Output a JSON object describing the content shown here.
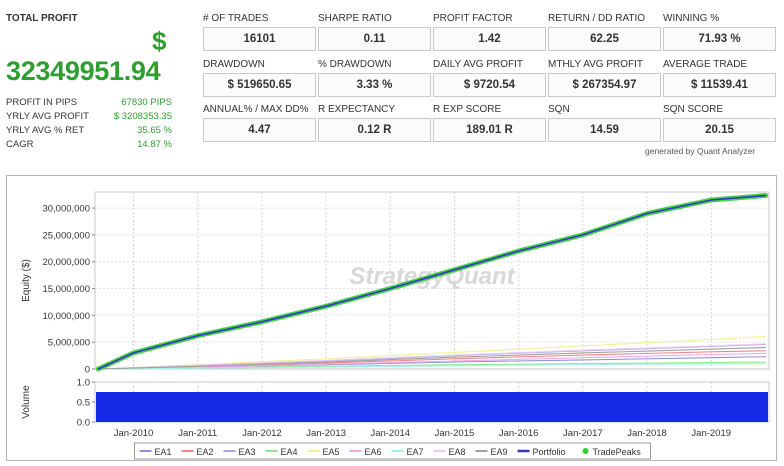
{
  "summary": {
    "total_profit_label": "TOTAL PROFIT",
    "currency_symbol": "$",
    "total_profit_value": "32349951.94",
    "rows": [
      {
        "label": "PROFIT IN PIPS",
        "value": "67830 PIPS"
      },
      {
        "label": "YRLY AVG PROFIT",
        "value": "$ 3208353.35"
      },
      {
        "label": "YRLY AVG % RET",
        "value": "35.65 %"
      },
      {
        "label": "CAGR",
        "value": "14.87 %"
      }
    ]
  },
  "metrics": [
    {
      "label": "# OF TRADES",
      "value": "16101"
    },
    {
      "label": "SHARPE RATIO",
      "value": "0.11"
    },
    {
      "label": "PROFIT FACTOR",
      "value": "1.42"
    },
    {
      "label": "RETURN / DD RATIO",
      "value": "62.25"
    },
    {
      "label": "WINNING %",
      "value": "71.93 %"
    },
    {
      "label": "DRAWDOWN",
      "value": "$ 519650.65"
    },
    {
      "label": "% DRAWDOWN",
      "value": "3.33 %"
    },
    {
      "label": "DAILY AVG PROFIT",
      "value": "$ 9720.54"
    },
    {
      "label": "MTHLY AVG PROFIT",
      "value": "$ 267354.97"
    },
    {
      "label": "AVERAGE TRADE",
      "value": "$ 11539.41"
    },
    {
      "label": "ANNUAL% / MAX DD%",
      "value": "4.47"
    },
    {
      "label": "R EXPECTANCY",
      "value": "0.12 R"
    },
    {
      "label": "R EXP SCORE",
      "value": "189.01 R"
    },
    {
      "label": "SQN",
      "value": "14.59"
    },
    {
      "label": "SQN SCORE",
      "value": "20.15"
    }
  ],
  "generated_by": "generated by Quant Analyzer",
  "chart_data": {
    "type": "line",
    "watermark": "StrategyQuant",
    "equity_ylabel": "Equity ($)",
    "volume_ylabel": "Volume",
    "equity_ylim": [
      0,
      33000000
    ],
    "equity_yticks": [
      "0",
      "5,000,000",
      "10,000,000",
      "15,000,000",
      "20,000,000",
      "25,000,000",
      "30,000,000"
    ],
    "volume_ylim": [
      0,
      1.0
    ],
    "volume_yticks": [
      "0.0",
      "0.5",
      "1.0"
    ],
    "volume_level": 0.75,
    "x_labels": [
      "Jan-2010",
      "Jan-2011",
      "Jan-2012",
      "Jan-2013",
      "Jan-2014",
      "Jan-2015",
      "Jan-2016",
      "Jan-2017",
      "Jan-2018",
      "Jan-2019"
    ],
    "x_range": [
      2009.4,
      2019.9
    ],
    "grid": true,
    "legend_position": "bottom",
    "colors": {
      "EA1": "#8f8fe0",
      "EA2": "#f08888",
      "EA3": "#a8a8ee",
      "EA4": "#90e890",
      "EA5": "#f4f090",
      "EA6": "#f0a8e8",
      "EA7": "#a8eeee",
      "EA8": "#e8c8f0",
      "EA9": "#a0a0a0",
      "Portfolio": "#3434c8",
      "TradePeaks": "#33cc33",
      "volume": "#1428e6"
    },
    "series": [
      {
        "name": "EA1",
        "x": [
          2009.45,
          2011,
          2013,
          2015,
          2017,
          2019,
          2019.85
        ],
        "y": [
          0,
          300000,
          800000,
          1300000,
          1700000,
          2100000,
          2300000
        ]
      },
      {
        "name": "EA2",
        "x": [
          2009.45,
          2011,
          2013,
          2015,
          2017,
          2019,
          2019.85
        ],
        "y": [
          0,
          400000,
          1100000,
          1900000,
          2600000,
          3200000,
          3400000
        ]
      },
      {
        "name": "EA3",
        "x": [
          2009.45,
          2011,
          2013,
          2015,
          2017,
          2019,
          2019.85
        ],
        "y": [
          0,
          600000,
          1500000,
          2500000,
          3400000,
          4200000,
          4600000
        ]
      },
      {
        "name": "EA4",
        "x": [
          2009.45,
          2011,
          2013,
          2015,
          2017,
          2019,
          2019.85
        ],
        "y": [
          0,
          200000,
          500000,
          800000,
          1000000,
          1200000,
          1300000
        ]
      },
      {
        "name": "EA5",
        "x": [
          2009.45,
          2011,
          2013,
          2015,
          2017,
          2019,
          2019.85
        ],
        "y": [
          0,
          800000,
          1900000,
          3100000,
          4300000,
          5500000,
          6100000
        ]
      },
      {
        "name": "EA6",
        "x": [
          2009.45,
          2011,
          2013,
          2015,
          2017,
          2019,
          2019.85
        ],
        "y": [
          0,
          350000,
          900000,
          1500000,
          2100000,
          2700000,
          2900000
        ]
      },
      {
        "name": "EA7",
        "x": [
          2009.45,
          2011,
          2013,
          2015,
          2017,
          2019,
          2019.85
        ],
        "y": [
          0,
          150000,
          350000,
          600000,
          800000,
          950000,
          1000000
        ]
      },
      {
        "name": "EA8",
        "x": [
          2009.45,
          2011,
          2013,
          2015,
          2017,
          2019,
          2019.85
        ],
        "y": [
          0,
          700000,
          1600000,
          2600000,
          3500000,
          4300000,
          4700000
        ]
      },
      {
        "name": "EA9",
        "x": [
          2009.45,
          2011,
          2013,
          2015,
          2017,
          2019,
          2019.85
        ],
        "y": [
          0,
          500000,
          1300000,
          2200000,
          3000000,
          3700000,
          4000000
        ]
      },
      {
        "name": "Portfolio",
        "x": [
          2009.45,
          2010,
          2011,
          2012,
          2013,
          2014,
          2015,
          2016,
          2017,
          2018,
          2019,
          2019.85
        ],
        "y": [
          0,
          3000000,
          6200000,
          8800000,
          11700000,
          15000000,
          18500000,
          22000000,
          25000000,
          29000000,
          31500000,
          32350000
        ]
      }
    ]
  }
}
